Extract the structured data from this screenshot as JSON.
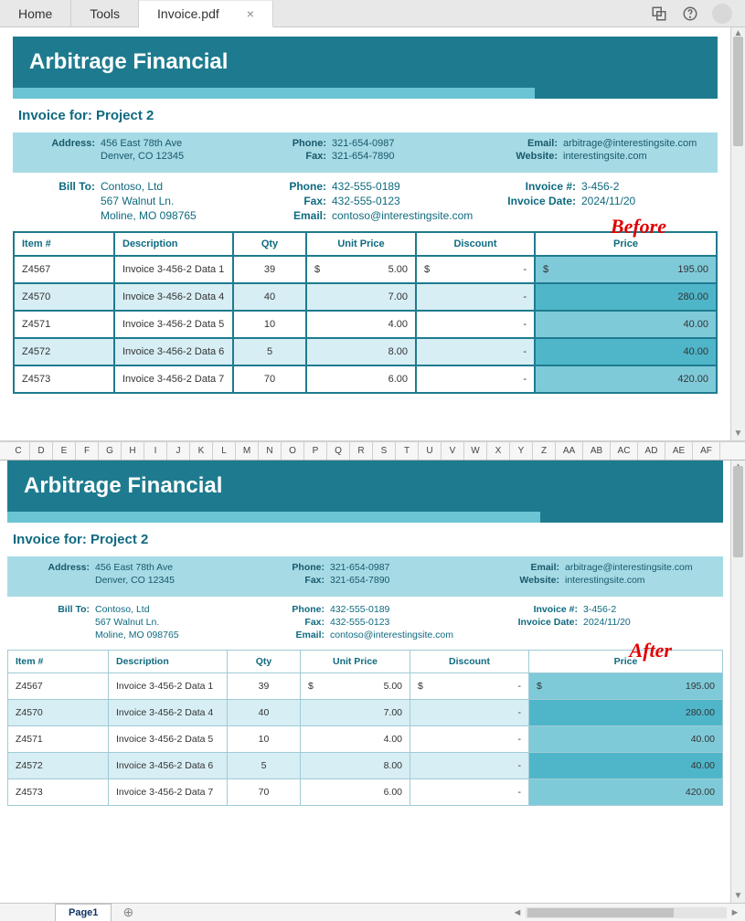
{
  "colors": {
    "brand_dark": "#1e7b8f",
    "brand_light": "#6bc4d4",
    "band": "#a6dbe6",
    "text_teal": "#0e6a7f",
    "row_even": "#d7eef4",
    "price_odd": "#7fcad9",
    "price_even": "#4fb6c9",
    "annotation": "#e00000"
  },
  "tabs": {
    "home": "Home",
    "tools": "Tools",
    "file": "Invoice.pdf"
  },
  "annotations": {
    "before": "Before",
    "after": "After"
  },
  "invoice": {
    "company": "Arbitrage Financial",
    "title": "Invoice for: Project 2",
    "from": {
      "address_label": "Address:",
      "address_l1": "456 East 78th Ave",
      "address_l2": "Denver, CO 12345",
      "phone_label": "Phone:",
      "phone": "321-654-0987",
      "fax_label": "Fax:",
      "fax": "321-654-7890",
      "email_label": "Email:",
      "email": "arbitrage@interestingsite.com",
      "website_label": "Website:",
      "website": "interestingsite.com"
    },
    "billto": {
      "label": "Bill To:",
      "name": "Contoso, Ltd",
      "addr": "567 Walnut Ln.",
      "city": "Moline, MO 098765",
      "phone_label": "Phone:",
      "phone": "432-555-0189",
      "fax_label": "Fax:",
      "fax": "432-555-0123",
      "email_label": "Email:",
      "email": "contoso@interestingsite.com",
      "invno_label": "Invoice #:",
      "invno": "3-456-2",
      "date_label": "Invoice Date:",
      "date": "2024/11/20"
    },
    "columns": {
      "item": "Item #",
      "desc": "Description",
      "qty": "Qty",
      "unit": "Unit Price",
      "disc": "Discount",
      "price": "Price"
    },
    "rows": [
      {
        "item": "Z4567",
        "desc": "Invoice 3-456-2 Data 1",
        "qty": "39",
        "unit": "5.00",
        "disc": "-",
        "price": "195.00",
        "show_currency": true
      },
      {
        "item": "Z4570",
        "desc": "Invoice 3-456-2 Data 4",
        "qty": "40",
        "unit": "7.00",
        "disc": "-",
        "price": "280.00",
        "show_currency": false
      },
      {
        "item": "Z4571",
        "desc": "Invoice 3-456-2 Data 5",
        "qty": "10",
        "unit": "4.00",
        "disc": "-",
        "price": "40.00",
        "show_currency": false
      },
      {
        "item": "Z4572",
        "desc": "Invoice 3-456-2 Data 6",
        "qty": "5",
        "unit": "8.00",
        "disc": "-",
        "price": "40.00",
        "show_currency": false
      },
      {
        "item": "Z4573",
        "desc": "Invoice 3-456-2 Data 7",
        "qty": "70",
        "unit": "6.00",
        "disc": "-",
        "price": "420.00",
        "show_currency": false
      }
    ],
    "currency_symbol": "$"
  },
  "spreadsheet": {
    "columns": [
      "C",
      "D",
      "E",
      "F",
      "G",
      "H",
      "I",
      "J",
      "K",
      "L",
      "M",
      "N",
      "O",
      "P",
      "Q",
      "R",
      "S",
      "T",
      "U",
      "V",
      "W",
      "X",
      "Y",
      "Z",
      "AA",
      "AB",
      "AC",
      "AD",
      "AE",
      "AF"
    ],
    "tab": "Page1"
  }
}
